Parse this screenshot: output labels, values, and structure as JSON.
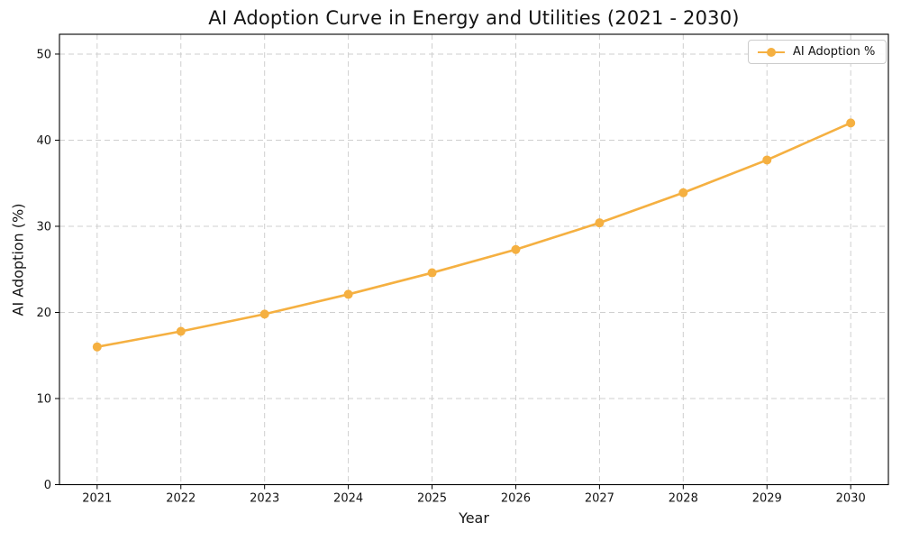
{
  "title": "AI Adoption Curve in Energy and Utilities (2021 - 2030)",
  "chart_data": {
    "type": "line",
    "title": "AI Adoption Curve in Energy and Utilities (2021 - 2030)",
    "xlabel": "Year",
    "ylabel": "AI Adoption (%)",
    "x": [
      2021,
      2022,
      2023,
      2024,
      2025,
      2026,
      2027,
      2028,
      2029,
      2030
    ],
    "series": [
      {
        "name": "AI Adoption %",
        "values": [
          16.0,
          17.8,
          19.8,
          22.1,
          24.6,
          27.3,
          30.4,
          33.9,
          37.7,
          42.0
        ],
        "color": "#F5B041",
        "marker": "circle"
      }
    ],
    "yticks": [
      0,
      10,
      20,
      30,
      40,
      50
    ],
    "ylim": [
      0,
      52.3
    ],
    "grid": true,
    "grid_style": "dashed",
    "legend_position": "upper right",
    "background_color": "#ffffff",
    "text_color": "#141414",
    "grid_color": "#cfcfcf"
  }
}
